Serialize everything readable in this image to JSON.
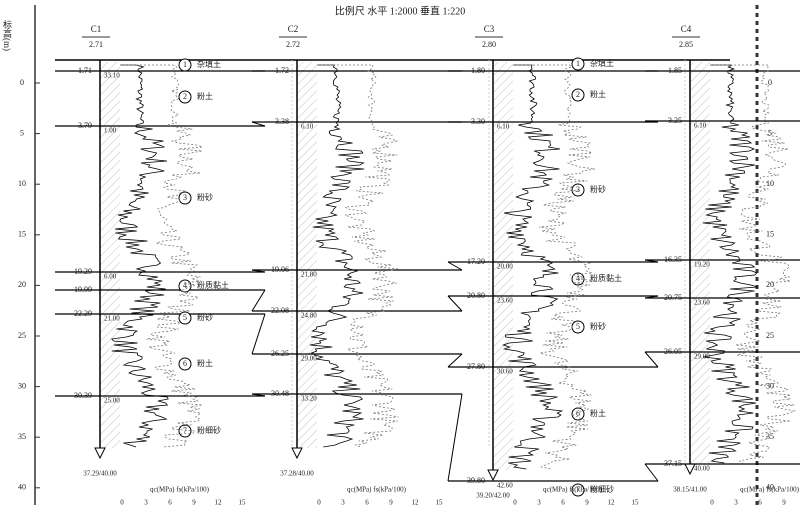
{
  "title": "比例尺 水平 1:2000 垂直 1:220",
  "axis": {
    "label": "标高(m)",
    "ticks": [
      "0",
      "5",
      "10",
      "15",
      "20",
      "25",
      "30",
      "35",
      "40"
    ]
  },
  "columns": [
    {
      "name": "C1",
      "elevation": "2.71",
      "elev_labels": [
        "1.71",
        "3.79",
        "19.29",
        "19.99",
        "22.29",
        "30.39"
      ],
      "depth_labels": [
        "1.00",
        "6.00",
        "21.00",
        "25.00",
        "33.10"
      ],
      "bottom": "37.29/40.00",
      "layers": [
        {
          "num": "1",
          "name": "杂填土"
        },
        {
          "num": "2",
          "name": "粉土"
        },
        {
          "num": "3",
          "name": "粉砂"
        },
        {
          "num": "4",
          "name": "粉质黏土"
        },
        {
          "num": "5",
          "name": "粉砂"
        },
        {
          "num": "6",
          "name": "粉土"
        },
        {
          "num": "7",
          "name": "粉细砂"
        }
      ]
    },
    {
      "name": "C2",
      "elevation": "2.72",
      "elev_labels": [
        "1.72",
        "3.38",
        "19.06",
        "22.08",
        "26.25",
        "30.48"
      ],
      "depth_labels": [
        "6.10",
        "21.80",
        "24.80",
        "29.00",
        "33.20"
      ],
      "bottom": "37.28/40.00",
      "layers": []
    },
    {
      "name": "C3",
      "elevation": "2.80",
      "elev_labels": [
        "1.80",
        "3.30",
        "17.20",
        "20.80",
        "27.80",
        "39.80"
      ],
      "depth_labels": [
        "6.10",
        "20.00",
        "23.60",
        "30.60",
        "42.60"
      ],
      "bottom": "39.20/42.00",
      "layers": [
        {
          "num": "1",
          "name": "杂填土"
        },
        {
          "num": "2",
          "name": "粉土"
        },
        {
          "num": "3",
          "name": "粉砂"
        },
        {
          "num": "4",
          "name": "粉质黏土"
        },
        {
          "num": "5",
          "name": "粉砂"
        },
        {
          "num": "6",
          "name": "粉土"
        },
        {
          "num": "7",
          "name": "粉细砂"
        }
      ]
    },
    {
      "name": "C4",
      "elevation": "2.85",
      "elev_labels": [
        "1.85",
        "3.25",
        "16.35",
        "20.75",
        "26.05",
        "37.15"
      ],
      "depth_labels": [
        "6.10",
        "19.20",
        "23.60",
        "29.00",
        "40.00"
      ],
      "bottom": "38.15/41.00",
      "layers": []
    }
  ],
  "scale": {
    "label": "qc(MPa) fs(kPa/100)",
    "ticks": [
      "0",
      "3",
      "6",
      "9",
      "12",
      "15"
    ]
  }
}
